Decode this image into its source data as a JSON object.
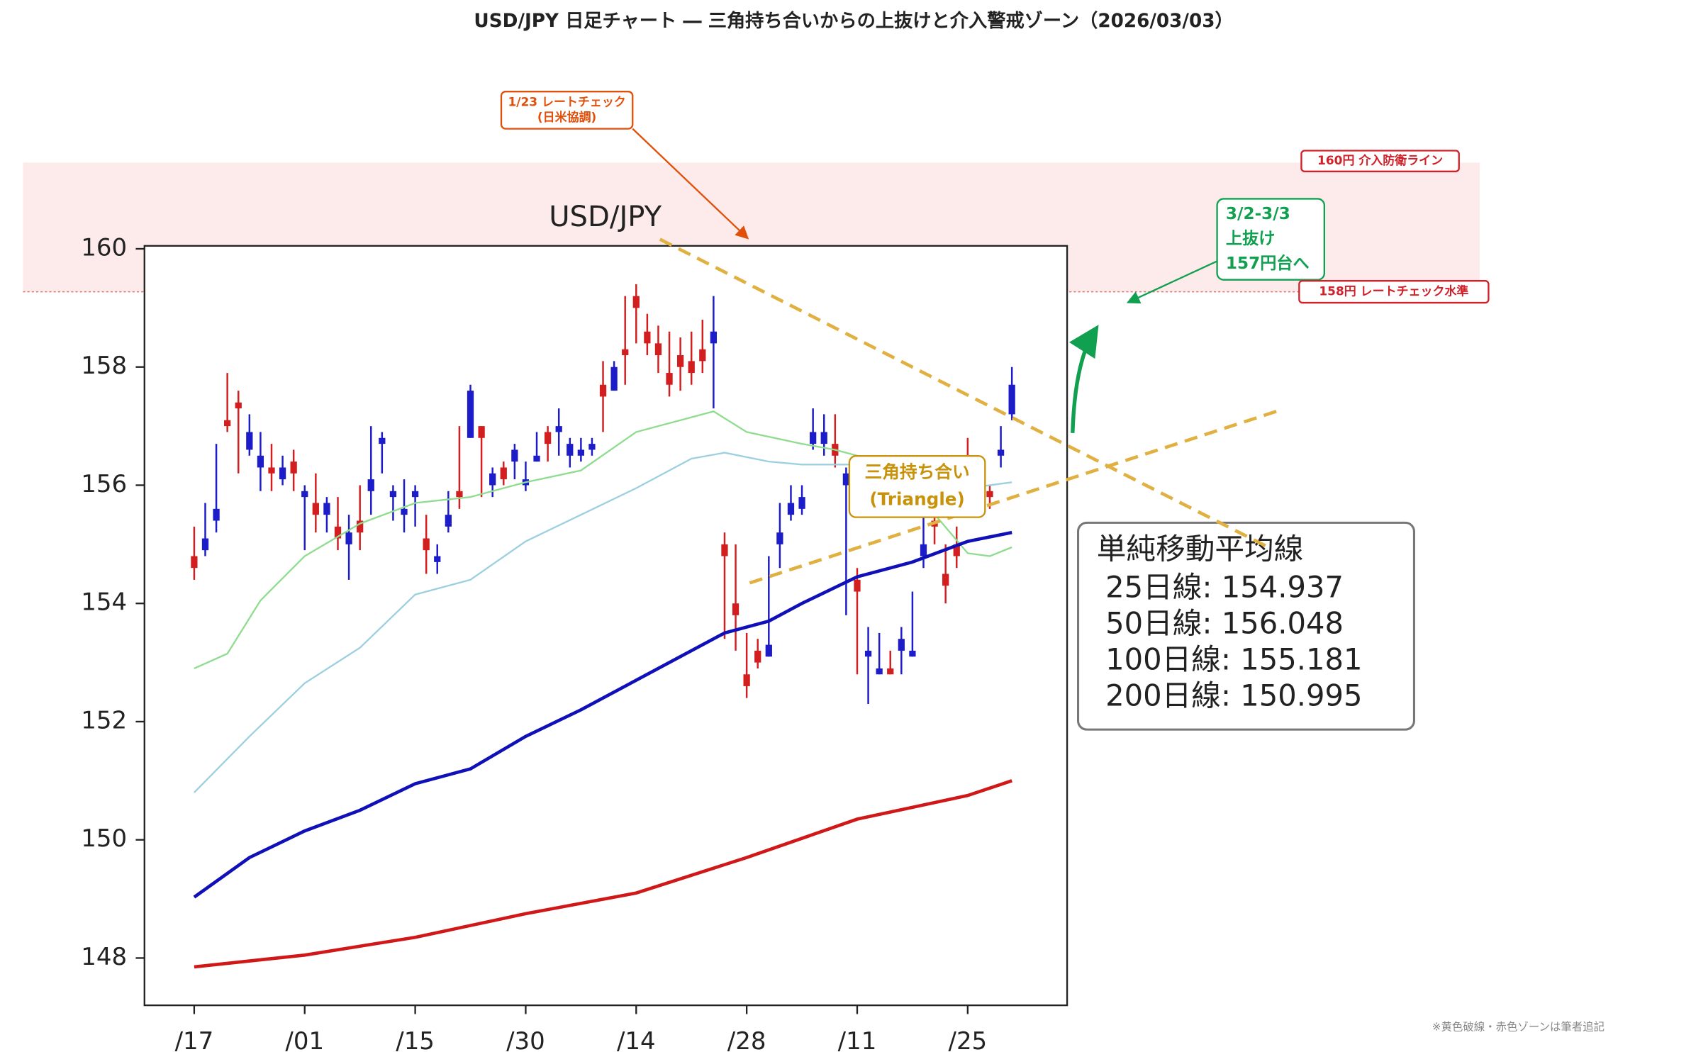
{
  "chart_data": {
    "type": "candlestick",
    "title": "USD/JPY 日足チャート ― 三角持ち合いからの上抜けと介入警戒ゾーン（2026/03/03）",
    "inner_title": "USD/JPY",
    "footnote": "※黄色破線・赤色ゾーンは筆者追記",
    "up_color": "#1c1cc8",
    "down_color": "#d21e1e",
    "candles": {
      "open": [
        154.8,
        154.9,
        155.4,
        157.1,
        157.4,
        156.6,
        156.3,
        156.3,
        156.1,
        156.4,
        155.8,
        155.7,
        155.5,
        155.3,
        155.0,
        155.4,
        155.9,
        156.7,
        155.8,
        155.5,
        155.8,
        155.1,
        154.7,
        155.3,
        155.9,
        156.8,
        157.0,
        156.0,
        156.3,
        156.4,
        156.0,
        156.4,
        156.9,
        156.9,
        156.5,
        156.5,
        156.6,
        157.7,
        157.6,
        158.3,
        159.2,
        158.6,
        158.4,
        157.9,
        158.2,
        158.1,
        158.3,
        158.4,
        155.0,
        154.0,
        152.8,
        153.2,
        153.1,
        155.0,
        155.5,
        155.6,
        156.7,
        156.7,
        156.7,
        156.0,
        154.4,
        153.1,
        152.8,
        152.9,
        153.2,
        153.1,
        154.8,
        155.4,
        154.5,
        155.0,
        155.7,
        156.1,
        155.9,
        156.5,
        157.2
      ],
      "high": [
        155.3,
        155.7,
        156.7,
        157.9,
        157.6,
        157.2,
        156.9,
        156.7,
        156.5,
        156.6,
        156.0,
        156.2,
        155.8,
        155.8,
        155.5,
        156.0,
        157.0,
        156.9,
        156.0,
        156.1,
        156.0,
        155.5,
        155.0,
        155.9,
        157.0,
        157.7,
        157.0,
        156.3,
        156.4,
        156.7,
        156.4,
        156.9,
        157.0,
        157.3,
        156.8,
        156.8,
        156.8,
        158.1,
        158.1,
        159.2,
        159.4,
        158.9,
        158.7,
        158.6,
        158.5,
        158.6,
        158.8,
        159.2,
        155.2,
        155.0,
        153.5,
        153.4,
        154.8,
        155.7,
        156.0,
        156.0,
        157.3,
        157.2,
        157.2,
        156.3,
        154.6,
        153.6,
        153.5,
        153.2,
        153.6,
        154.2,
        155.5,
        155.5,
        155.0,
        155.3,
        156.8,
        156.2,
        156.0,
        157.0,
        158.0
      ],
      "low": [
        154.4,
        154.8,
        155.2,
        156.9,
        156.2,
        156.5,
        155.9,
        155.9,
        156.0,
        155.9,
        154.9,
        155.2,
        155.2,
        154.9,
        154.4,
        154.9,
        155.5,
        156.2,
        155.4,
        155.2,
        155.3,
        154.5,
        154.5,
        155.2,
        155.6,
        156.8,
        155.8,
        155.8,
        156.0,
        156.1,
        155.9,
        156.4,
        156.4,
        156.5,
        156.3,
        156.4,
        156.5,
        156.9,
        157.6,
        157.7,
        158.4,
        158.2,
        157.9,
        157.5,
        157.6,
        157.7,
        157.9,
        157.3,
        153.4,
        153.2,
        152.4,
        152.9,
        153.1,
        154.6,
        155.4,
        155.5,
        156.6,
        156.5,
        156.3,
        153.8,
        152.8,
        152.3,
        152.8,
        152.8,
        152.8,
        153.1,
        154.6,
        155.0,
        154.0,
        154.6,
        155.5,
        155.9,
        155.6,
        156.3,
        157.1
      ],
      "close": [
        154.6,
        155.1,
        155.6,
        157.0,
        157.3,
        156.9,
        156.5,
        156.2,
        156.3,
        156.2,
        155.9,
        155.5,
        155.7,
        155.1,
        155.2,
        155.2,
        156.1,
        156.8,
        155.9,
        155.6,
        155.9,
        154.9,
        154.8,
        155.5,
        155.8,
        157.6,
        156.8,
        156.2,
        156.1,
        156.6,
        156.1,
        156.5,
        156.7,
        157.0,
        156.7,
        156.6,
        156.7,
        157.5,
        158.0,
        158.2,
        159.0,
        158.4,
        158.2,
        157.7,
        158.0,
        157.9,
        158.1,
        158.6,
        154.8,
        153.8,
        152.6,
        153.0,
        153.3,
        155.2,
        155.7,
        155.8,
        156.9,
        156.9,
        156.5,
        156.2,
        154.2,
        153.2,
        152.9,
        152.8,
        153.4,
        153.2,
        155.0,
        155.3,
        154.3,
        154.8,
        155.6,
        156.0,
        155.8,
        156.6,
        157.7
      ]
    },
    "series": [
      {
        "label": "25日線: 154.937",
        "color": "#8fdc8f",
        "width": 1.5,
        "x": [
          0,
          3,
          6,
          10,
          15,
          20,
          25,
          30,
          35,
          40,
          45,
          47,
          50,
          55,
          58,
          60,
          65,
          70,
          72,
          74
        ],
        "values": [
          152.9,
          153.15,
          154.05,
          154.8,
          155.35,
          155.7,
          155.8,
          156.05,
          156.25,
          156.9,
          157.15,
          157.25,
          156.9,
          156.7,
          156.6,
          156.5,
          155.95,
          154.85,
          154.8,
          154.95
        ]
      },
      {
        "label": "50日線: 156.048",
        "color": "#9ccfe0",
        "width": 1.5,
        "x": [
          0,
          5,
          10,
          15,
          20,
          25,
          30,
          35,
          40,
          45,
          48,
          52,
          55,
          60,
          65,
          70,
          74
        ],
        "values": [
          150.8,
          151.75,
          152.65,
          153.25,
          154.15,
          154.4,
          155.05,
          155.5,
          155.95,
          156.45,
          156.55,
          156.4,
          156.35,
          156.35,
          156.05,
          155.95,
          156.05
        ]
      },
      {
        "label": "100日線: 155.181",
        "color": "#1010b8",
        "width": 3,
        "x": [
          0,
          5,
          10,
          15,
          20,
          25,
          30,
          35,
          40,
          48,
          52,
          55,
          60,
          65,
          70,
          74
        ],
        "values": [
          149.03,
          149.7,
          150.15,
          150.5,
          150.95,
          151.2,
          151.75,
          152.2,
          152.7,
          153.5,
          153.7,
          154.0,
          154.45,
          154.7,
          155.05,
          155.2
        ]
      },
      {
        "label": "200日線: 150.995",
        "color": "#d01818",
        "width": 3,
        "x": [
          0,
          10,
          20,
          30,
          40,
          50,
          60,
          70,
          74
        ],
        "values": [
          147.85,
          148.05,
          148.35,
          148.75,
          149.1,
          149.7,
          150.35,
          150.75,
          151.0
        ]
      }
    ],
    "legend_title": "単純移動平均線",
    "ylim": [
      147.2,
      160.05
    ],
    "yticks": [
      148,
      150,
      152,
      154,
      156,
      158,
      160
    ],
    "xlim": [
      -4.5,
      79
    ],
    "xticks": [
      {
        "value": 0,
        "label": "/17"
      },
      {
        "value": 10,
        "label": "/01"
      },
      {
        "value": 20,
        "label": "/15"
      },
      {
        "value": 30,
        "label": "/30"
      },
      {
        "value": 40,
        "label": "/14"
      },
      {
        "value": 50,
        "label": "/28"
      },
      {
        "value": 60,
        "label": "/11"
      },
      {
        "value": 70,
        "label": "/25"
      }
    ],
    "annotations": [
      {
        "lines": [
          "1/23 レートチェック",
          "(日米協調)"
        ],
        "color": "#e0500a"
      },
      {
        "lines": [
          "160円 介入防衛ライン"
        ],
        "color": "#d0202a"
      },
      {
        "lines": [
          "3/2-3/3",
          "上抜け",
          "157円台へ"
        ],
        "color": "#10a050"
      },
      {
        "lines": [
          "158円 レートチェック水準"
        ],
        "color": "#d0202a"
      },
      {
        "lines": [
          "三角持ち合い",
          "(Triangle)"
        ],
        "color": "#c8920a"
      }
    ]
  }
}
